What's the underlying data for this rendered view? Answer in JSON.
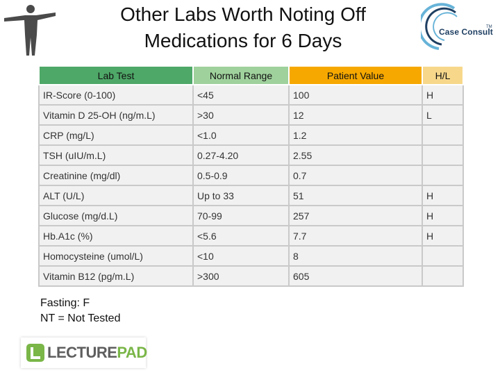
{
  "slide": {
    "title_line1": "Other Labs Worth Noting Off",
    "title_line2": "Medications for 6 Days"
  },
  "brand": {
    "name": "Case Consult",
    "tm": "TM"
  },
  "table": {
    "headers": [
      "Lab Test",
      "Normal Range",
      "Patient Value",
      "H/L"
    ],
    "rows": [
      [
        "IR-Score (0-100)",
        "<45",
        "100",
        "H"
      ],
      [
        "Vitamin D 25-OH (ng/m.L)",
        ">30",
        "12",
        "L"
      ],
      [
        "CRP (mg/L)",
        "<1.0",
        "1.2",
        ""
      ],
      [
        "TSH (uIU/m.L)",
        "0.27-4.20",
        "2.55",
        ""
      ],
      [
        "Creatinine (mg/dl)",
        "0.5-0.9",
        "0.7",
        ""
      ],
      [
        "ALT (U/L)",
        "Up to 33",
        "51",
        "H"
      ],
      [
        "Glucose (mg/d.L)",
        "70-99",
        "257",
        "H"
      ],
      [
        "Hb.A1c (%)",
        "<5.6",
        "7.7",
        "H"
      ],
      [
        "Homocysteine (umol/L)",
        "<10",
        "8",
        ""
      ],
      [
        "Vitamin B12 (pg/m.L)",
        ">300",
        "605",
        ""
      ]
    ]
  },
  "notes": {
    "line1": "Fasting: F",
    "line2": "NT = Not Tested"
  },
  "lecturepad": {
    "part1": "LECTURE",
    "part2": "PAD"
  }
}
